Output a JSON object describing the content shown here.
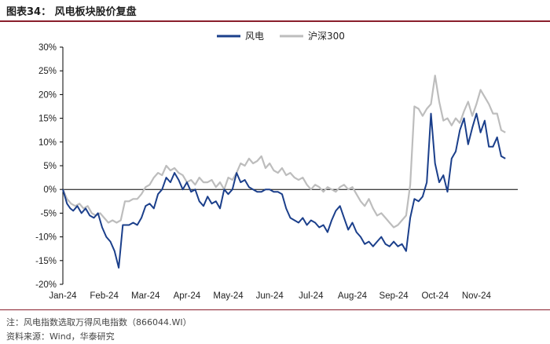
{
  "figure": {
    "title": "图表34：  风电板块股价复盘"
  },
  "footer": {
    "note": "注：风电指数选取万得风电指数（866044.WI）",
    "source": "资料来源：Wind，华泰研究"
  },
  "colors": {
    "wind": "#1b3f8b",
    "hs300": "#bdbdbd",
    "rule": "#8a1f2c",
    "axis": "#000000"
  },
  "chart_data": {
    "type": "line",
    "ylim": [
      -20,
      30
    ],
    "y_ticks": [
      -20,
      -15,
      -10,
      -5,
      0,
      5,
      10,
      15,
      20,
      25,
      30
    ],
    "y_tick_labels": [
      "-20%",
      "-15%",
      "-10%",
      "-5%",
      "0%",
      "5%",
      "10%",
      "15%",
      "20%",
      "25%",
      "30%"
    ],
    "x_tick_labels": [
      "Jan-24",
      "Feb-24",
      "Mar-24",
      "Apr-24",
      "May-24",
      "Jun-24",
      "Jul-24",
      "Aug-24",
      "Sep-24",
      "Oct-24",
      "Nov-24"
    ],
    "grid": false,
    "legend_position": "top",
    "x_month_range": [
      0,
      11
    ],
    "series": [
      {
        "name": "风电",
        "x": [
          0.0,
          0.1,
          0.18,
          0.25,
          0.35,
          0.45,
          0.55,
          0.65,
          0.75,
          0.85,
          0.95,
          1.05,
          1.15,
          1.25,
          1.35,
          1.45,
          1.55,
          1.6,
          1.7,
          1.8,
          1.9,
          2.0,
          2.1,
          2.2,
          2.3,
          2.4,
          2.5,
          2.6,
          2.7,
          2.8,
          2.9,
          3.0,
          3.1,
          3.2,
          3.3,
          3.4,
          3.5,
          3.6,
          3.7,
          3.8,
          3.9,
          4.0,
          4.1,
          4.2,
          4.3,
          4.4,
          4.5,
          4.6,
          4.7,
          4.8,
          4.9,
          5.0,
          5.1,
          5.2,
          5.3,
          5.4,
          5.5,
          5.6,
          5.7,
          5.8,
          5.9,
          6.0,
          6.1,
          6.2,
          6.3,
          6.4,
          6.5,
          6.6,
          6.7,
          6.8,
          6.9,
          7.0,
          7.1,
          7.2,
          7.3,
          7.4,
          7.5,
          7.6,
          7.7,
          7.8,
          7.9,
          8.0,
          8.1,
          8.2,
          8.3,
          8.4,
          8.5,
          8.6,
          8.7,
          8.8,
          8.9,
          9.0,
          9.1,
          9.2,
          9.3,
          9.4,
          9.5,
          9.6,
          9.7,
          9.8,
          9.9,
          10.0,
          10.1,
          10.2,
          10.3,
          10.4,
          10.5,
          10.6,
          10.7
        ],
        "values": [
          0.0,
          -3.0,
          -4.0,
          -4.5,
          -3.5,
          -5.0,
          -4.0,
          -5.5,
          -6.0,
          -5.0,
          -8.0,
          -10.0,
          -11.0,
          -13.0,
          -16.5,
          -7.5,
          -7.5,
          -7.5,
          -7.0,
          -7.5,
          -6.0,
          -3.5,
          -3.0,
          -4.0,
          -1.0,
          0.0,
          2.5,
          1.5,
          3.5,
          2.0,
          0.0,
          1.5,
          -0.5,
          0.0,
          -2.5,
          -3.5,
          -1.5,
          -3.0,
          -2.5,
          -4.0,
          0.0,
          -1.0,
          0.0,
          3.5,
          1.5,
          2.0,
          0.5,
          0.0,
          -0.5,
          -0.5,
          0.0,
          0.0,
          -0.5,
          -0.5,
          -1.0,
          -4.0,
          -6.0,
          -6.5,
          -7.0,
          -6.0,
          -7.5,
          -6.5,
          -7.0,
          -8.0,
          -7.5,
          -9.0,
          -6.5,
          -4.5,
          -3.5,
          -6.0,
          -8.5,
          -7.0,
          -9.0,
          -10.0,
          -11.5,
          -11.0,
          -12.0,
          -11.0,
          -10.0,
          -11.5,
          -12.0,
          -11.0,
          -12.0,
          -11.5,
          -13.0,
          -6.0,
          -2.0,
          -2.5,
          -1.5,
          1.5,
          16.0,
          5.5,
          1.5,
          3.0,
          -0.5,
          6.5,
          8.0,
          12.5,
          15.0,
          9.5,
          13.0,
          16.0,
          12.0,
          14.5,
          9.0,
          9.0,
          11.0,
          7.0,
          6.5
        ]
      },
      {
        "name": "沪深300",
        "x": [
          0.0,
          0.1,
          0.2,
          0.3,
          0.4,
          0.5,
          0.6,
          0.7,
          0.8,
          0.9,
          1.0,
          1.1,
          1.2,
          1.3,
          1.4,
          1.5,
          1.6,
          1.7,
          1.8,
          1.9,
          2.0,
          2.1,
          2.2,
          2.3,
          2.4,
          2.5,
          2.6,
          2.7,
          2.8,
          2.9,
          3.0,
          3.1,
          3.2,
          3.3,
          3.4,
          3.5,
          3.6,
          3.7,
          3.8,
          3.9,
          4.0,
          4.1,
          4.2,
          4.3,
          4.4,
          4.5,
          4.6,
          4.7,
          4.8,
          4.9,
          5.0,
          5.1,
          5.2,
          5.3,
          5.4,
          5.5,
          5.6,
          5.7,
          5.8,
          5.9,
          6.0,
          6.1,
          6.2,
          6.3,
          6.4,
          6.5,
          6.6,
          6.7,
          6.8,
          6.9,
          7.0,
          7.1,
          7.2,
          7.3,
          7.4,
          7.5,
          7.6,
          7.7,
          7.8,
          7.9,
          8.0,
          8.1,
          8.2,
          8.3,
          8.4,
          8.5,
          8.6,
          8.7,
          8.8,
          8.9,
          9.0,
          9.1,
          9.2,
          9.3,
          9.4,
          9.5,
          9.6,
          9.7,
          9.8,
          9.9,
          10.0,
          10.1,
          10.2,
          10.3,
          10.4,
          10.5,
          10.6,
          10.7
        ],
        "values": [
          0.0,
          -2.0,
          -3.0,
          -3.5,
          -3.0,
          -4.0,
          -3.5,
          -5.0,
          -5.5,
          -5.0,
          -6.0,
          -7.0,
          -6.5,
          -7.0,
          -6.5,
          -2.5,
          -2.5,
          -2.0,
          -2.0,
          -1.0,
          0.5,
          1.0,
          2.5,
          3.5,
          3.0,
          5.0,
          4.0,
          4.5,
          3.5,
          3.0,
          1.5,
          2.0,
          1.0,
          2.5,
          1.5,
          1.5,
          2.0,
          0.5,
          1.5,
          0.0,
          2.5,
          2.0,
          3.5,
          5.5,
          5.0,
          6.5,
          5.5,
          6.0,
          7.0,
          4.5,
          5.5,
          4.0,
          3.5,
          4.5,
          3.0,
          3.5,
          2.5,
          2.0,
          2.5,
          1.0,
          0.0,
          1.0,
          0.5,
          -0.5,
          0.5,
          0.0,
          -0.5,
          0.5,
          1.0,
          0.0,
          0.5,
          -1.0,
          -2.5,
          -3.5,
          -2.0,
          -4.0,
          -5.5,
          -5.0,
          -6.0,
          -7.0,
          -8.0,
          -7.5,
          -6.5,
          -5.5,
          1.0,
          17.5,
          17.0,
          15.5,
          17.0,
          18.0,
          24.0,
          18.5,
          14.5,
          15.0,
          13.5,
          15.0,
          14.0,
          16.5,
          18.5,
          15.5,
          18.0,
          21.0,
          19.5,
          18.0,
          16.0,
          16.0,
          12.5,
          12.0
        ]
      }
    ]
  }
}
